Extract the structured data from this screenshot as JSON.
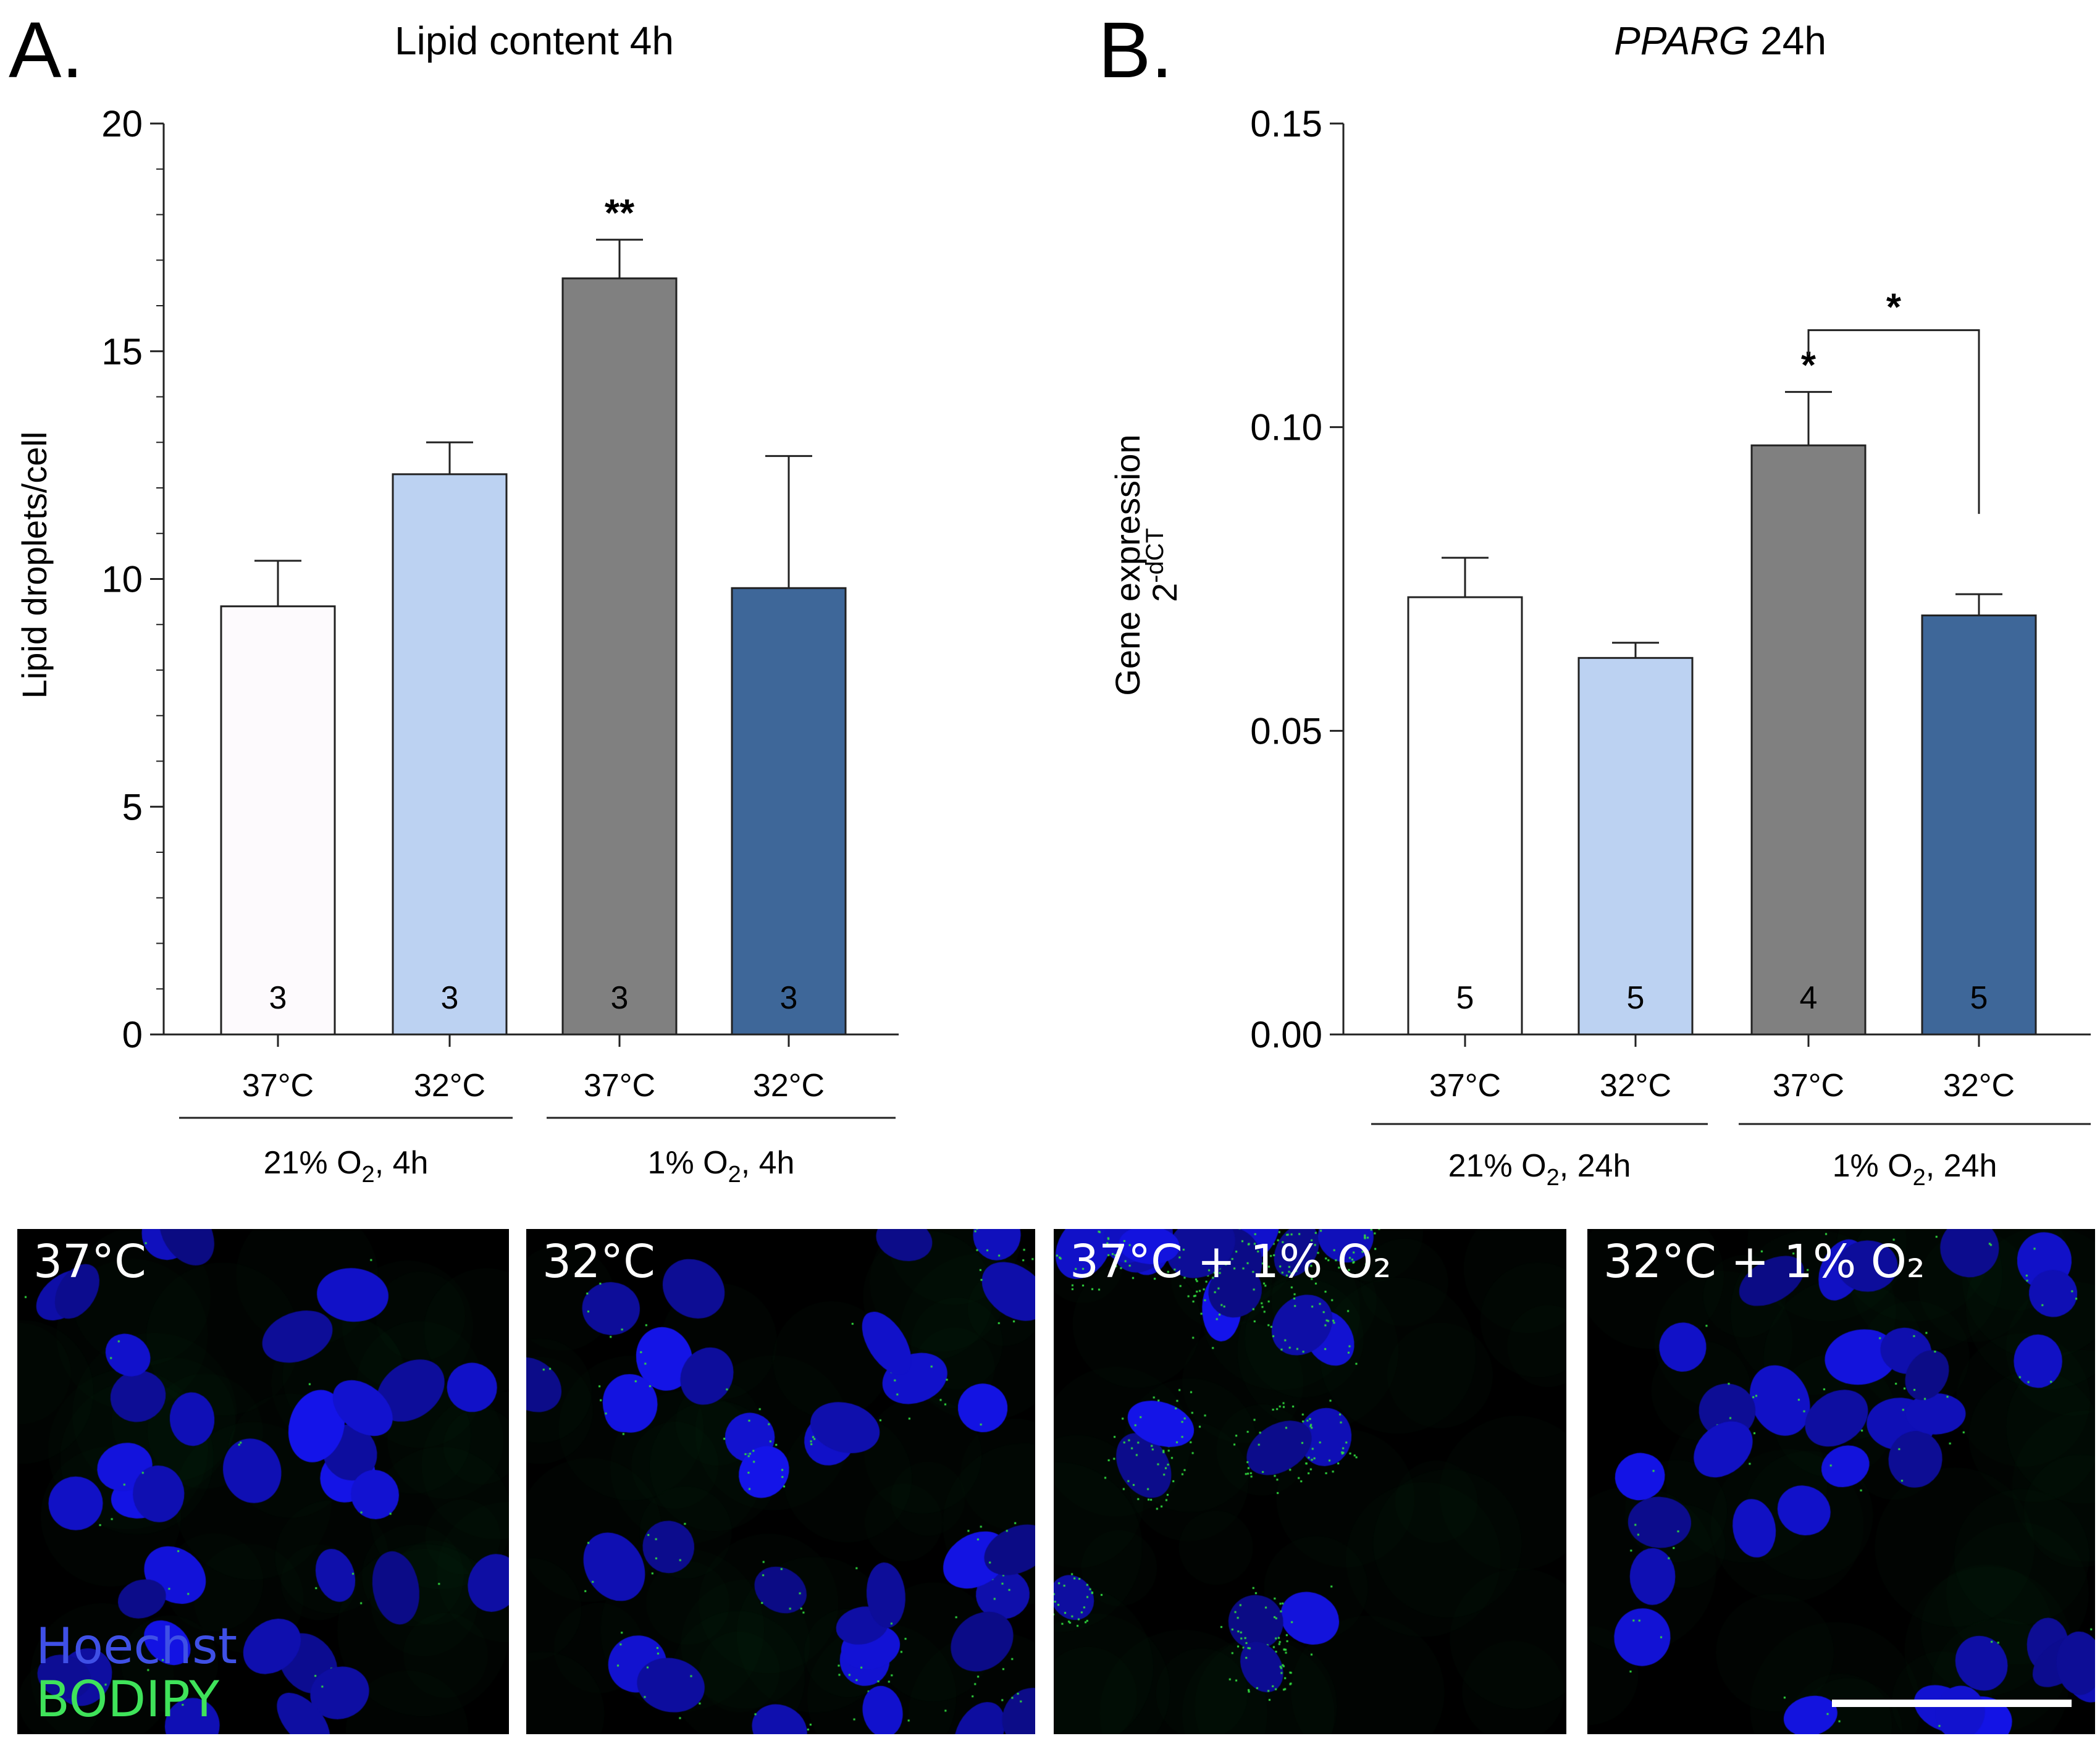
{
  "panels": [
    {
      "letter": "A."
    },
    {
      "letter": "B."
    }
  ],
  "chart_data": [
    {
      "type": "bar",
      "title": "Lipid content 4h",
      "ylabel": "Lipid droplets/cell",
      "ylim": [
        0,
        20
      ],
      "yticks": [
        "0",
        "5",
        "10",
        "15",
        "20"
      ],
      "minor_ticks_per_major": 5,
      "categories": [
        "37°C",
        "32°C",
        "37°C",
        "32°C"
      ],
      "values": [
        9.4,
        12.3,
        16.6,
        9.8
      ],
      "errors": [
        1.0,
        0.7,
        0.85,
        2.9
      ],
      "n": [
        "3",
        "3",
        "3",
        "3"
      ],
      "bar_colors": [
        "#fdfafd",
        "#bcd2f2",
        "#808080",
        "#3e6799"
      ],
      "groups": [
        {
          "label": "21% O",
          "sub": "2",
          "suffix": ", 4h",
          "span": [
            0,
            1
          ]
        },
        {
          "label": "1% O",
          "sub": "2",
          "suffix": ", 4h",
          "span": [
            2,
            3
          ]
        }
      ],
      "significance": [
        {
          "bar": 2,
          "label": "**"
        }
      ],
      "brackets": []
    },
    {
      "type": "bar",
      "title_italic": "PPARG",
      "title_rest": " 24h",
      "ylabel": "Gene expression",
      "ylabel2_base": "2",
      "ylabel2_sup": "-dCT",
      "ylim": [
        0,
        0.15
      ],
      "yticks": [
        "0.00",
        "0.05",
        "0.10",
        "0.15"
      ],
      "categories": [
        "37°C",
        "32°C",
        "37°C",
        "32°C"
      ],
      "values": [
        0.072,
        0.062,
        0.097,
        0.069
      ],
      "errors": [
        0.0065,
        0.0025,
        0.0088,
        0.0035
      ],
      "n": [
        "5",
        "5",
        "4",
        "5"
      ],
      "bar_colors": [
        "#ffffff",
        "#bcd2f2",
        "#808080",
        "#3e6799"
      ],
      "groups": [
        {
          "label": "21% O",
          "sub": "2",
          "suffix": ", 24h",
          "span": [
            0,
            1
          ]
        },
        {
          "label": "1% O",
          "sub": "2",
          "suffix": ", 24h",
          "span": [
            2,
            3
          ]
        }
      ],
      "significance": [
        {
          "bar": 2,
          "label": "*"
        }
      ],
      "brackets": [
        {
          "from": 2,
          "to": 3,
          "label": "*"
        }
      ]
    }
  ],
  "micrographs": [
    {
      "label": "37°C"
    },
    {
      "label": "32°C"
    },
    {
      "label": "37°C + 1% O₂"
    },
    {
      "label": "32°C + 1% O₂"
    }
  ],
  "legend": {
    "hoechst": "Hoechst",
    "bodipy": "BODIPY"
  },
  "colors": {
    "nucleus": "#1b1be8",
    "lipid": "#33e040",
    "background": "#000000"
  }
}
